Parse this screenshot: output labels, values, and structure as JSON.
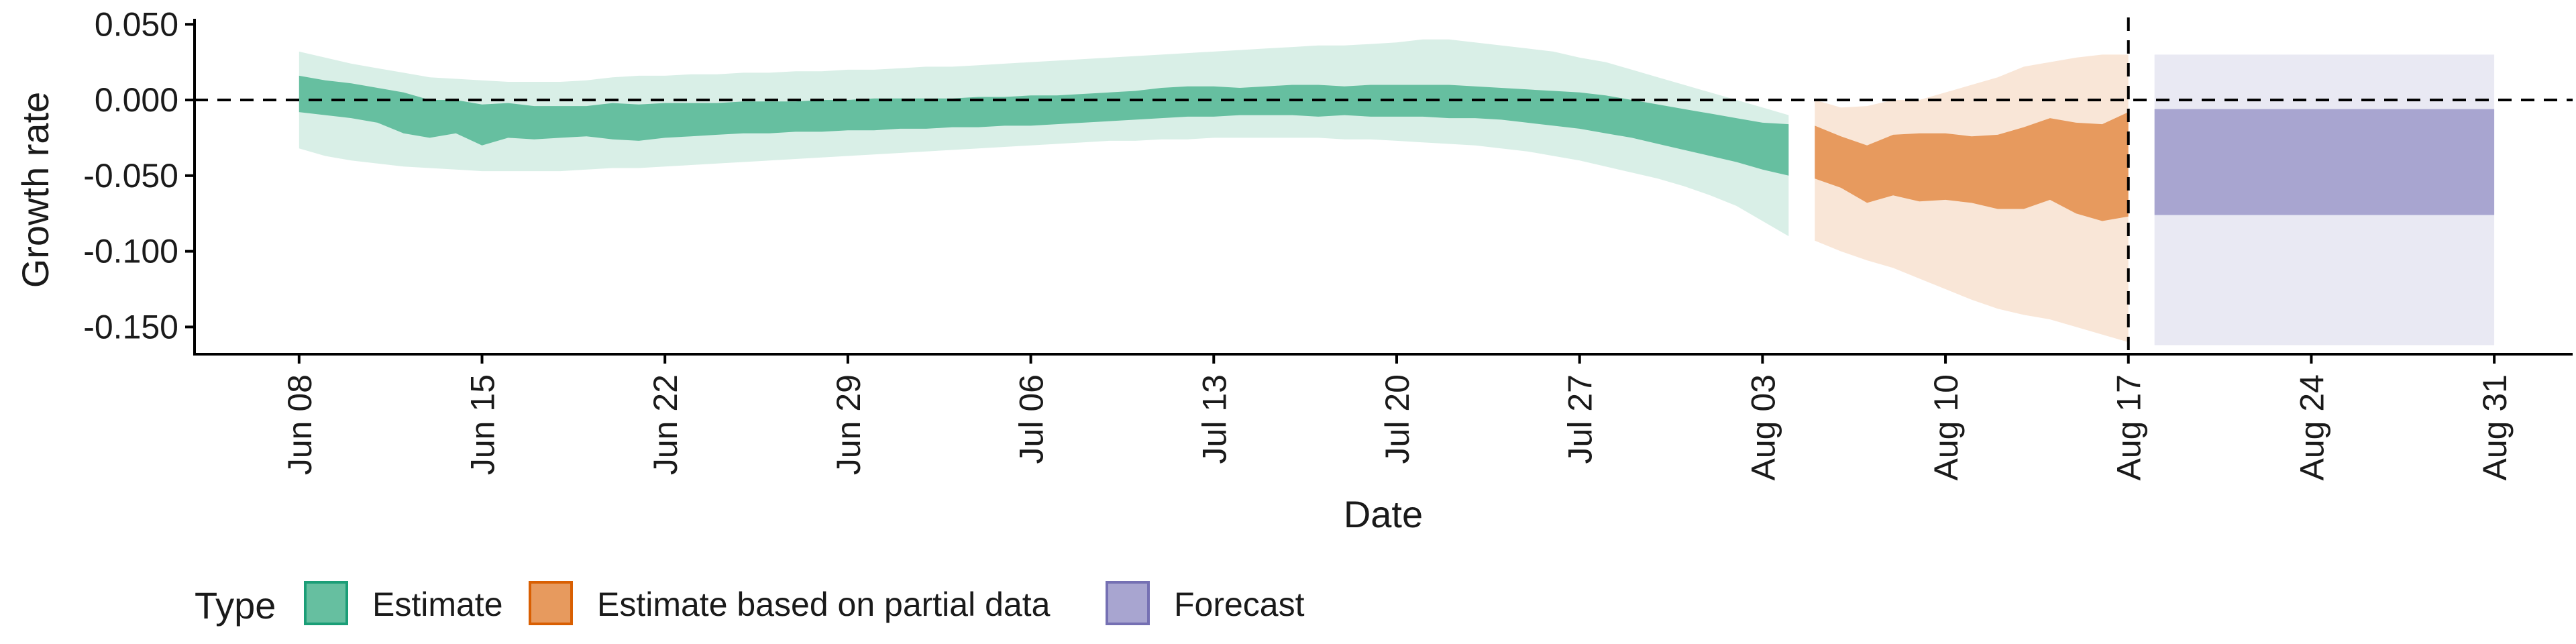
{
  "chart_data": {
    "type": "area",
    "xlabel": "Date",
    "ylabel": "Growth rate",
    "xlim": [
      "2021-06-04",
      "2021-09-03"
    ],
    "ylim": [
      -0.168,
      0.051
    ],
    "y_ticks": [
      0.05,
      0.0,
      -0.05,
      -0.1,
      -0.15
    ],
    "y_tick_labels": [
      "0.050",
      "0.000",
      "-0.050",
      "-0.100",
      "-0.150"
    ],
    "x_ticks": [
      "2021-06-08",
      "2021-06-15",
      "2021-06-22",
      "2021-06-29",
      "2021-07-06",
      "2021-07-13",
      "2021-07-20",
      "2021-07-27",
      "2021-08-03",
      "2021-08-10",
      "2021-08-17",
      "2021-08-24",
      "2021-08-31"
    ],
    "x_tick_labels": [
      "Jun 08",
      "Jun 15",
      "Jun 22",
      "Jun 29",
      "Jul 06",
      "Jul 13",
      "Jul 20",
      "Jul 27",
      "Aug 03",
      "Aug 10",
      "Aug 17",
      "Aug 24",
      "Aug 31"
    ],
    "reference_lines": {
      "horizontal_y": 0.0,
      "vertical_x": "2021-08-17",
      "style": "dashed"
    },
    "grid": false,
    "legend": {
      "title": "Type",
      "position": "bottom-left",
      "entries": [
        {
          "label": "Estimate",
          "color": "#1b9e77",
          "fill": "#66bfa0"
        },
        {
          "label": "Estimate based on partial data",
          "color": "#d95f02",
          "fill": "#e79a5e"
        },
        {
          "label": "Forecast",
          "color": "#7570b3",
          "fill": "#a8a5d0"
        }
      ]
    },
    "outer_band_opacity": 0.25,
    "series": [
      {
        "name": "Estimate",
        "color": "#1b9e77",
        "x": [
          "2021-06-08",
          "2021-06-09",
          "2021-06-10",
          "2021-06-11",
          "2021-06-12",
          "2021-06-13",
          "2021-06-14",
          "2021-06-15",
          "2021-06-16",
          "2021-06-17",
          "2021-06-18",
          "2021-06-19",
          "2021-06-20",
          "2021-06-21",
          "2021-06-22",
          "2021-06-23",
          "2021-06-24",
          "2021-06-25",
          "2021-06-26",
          "2021-06-27",
          "2021-06-28",
          "2021-06-29",
          "2021-06-30",
          "2021-07-01",
          "2021-07-02",
          "2021-07-03",
          "2021-07-04",
          "2021-07-05",
          "2021-07-06",
          "2021-07-07",
          "2021-07-08",
          "2021-07-09",
          "2021-07-10",
          "2021-07-11",
          "2021-07-12",
          "2021-07-13",
          "2021-07-14",
          "2021-07-15",
          "2021-07-16",
          "2021-07-17",
          "2021-07-18",
          "2021-07-19",
          "2021-07-20",
          "2021-07-21",
          "2021-07-22",
          "2021-07-23",
          "2021-07-24",
          "2021-07-25",
          "2021-07-26",
          "2021-07-27",
          "2021-07-28",
          "2021-07-29",
          "2021-07-30",
          "2021-07-31",
          "2021-08-01",
          "2021-08-02",
          "2021-08-03",
          "2021-08-04"
        ],
        "inner_upper": [
          0.016,
          0.013,
          0.011,
          0.008,
          0.005,
          0.0,
          0.0,
          -0.003,
          -0.002,
          -0.004,
          -0.004,
          -0.004,
          -0.002,
          -0.003,
          -0.002,
          -0.002,
          -0.002,
          -0.001,
          -0.001,
          -0.001,
          0.0,
          0.0,
          0.001,
          0.001,
          0.001,
          0.001,
          0.002,
          0.002,
          0.003,
          0.003,
          0.004,
          0.005,
          0.006,
          0.008,
          0.009,
          0.009,
          0.008,
          0.009,
          0.01,
          0.01,
          0.009,
          0.01,
          0.01,
          0.01,
          0.01,
          0.009,
          0.008,
          0.007,
          0.006,
          0.005,
          0.003,
          0.0,
          -0.003,
          -0.006,
          -0.009,
          -0.012,
          -0.015,
          -0.016
        ],
        "inner_lower": [
          -0.008,
          -0.01,
          -0.012,
          -0.015,
          -0.022,
          -0.025,
          -0.022,
          -0.03,
          -0.025,
          -0.026,
          -0.025,
          -0.024,
          -0.026,
          -0.027,
          -0.025,
          -0.024,
          -0.023,
          -0.022,
          -0.022,
          -0.021,
          -0.021,
          -0.02,
          -0.02,
          -0.019,
          -0.019,
          -0.018,
          -0.018,
          -0.017,
          -0.017,
          -0.016,
          -0.015,
          -0.014,
          -0.013,
          -0.012,
          -0.011,
          -0.011,
          -0.01,
          -0.01,
          -0.01,
          -0.011,
          -0.01,
          -0.011,
          -0.011,
          -0.011,
          -0.012,
          -0.012,
          -0.013,
          -0.015,
          -0.017,
          -0.019,
          -0.022,
          -0.025,
          -0.029,
          -0.033,
          -0.037,
          -0.041,
          -0.046,
          -0.05
        ],
        "outer_upper": [
          0.032,
          0.028,
          0.024,
          0.021,
          0.018,
          0.015,
          0.014,
          0.013,
          0.012,
          0.012,
          0.012,
          0.013,
          0.015,
          0.016,
          0.016,
          0.017,
          0.017,
          0.018,
          0.018,
          0.019,
          0.019,
          0.02,
          0.02,
          0.021,
          0.022,
          0.022,
          0.023,
          0.024,
          0.025,
          0.026,
          0.027,
          0.028,
          0.029,
          0.03,
          0.031,
          0.032,
          0.033,
          0.034,
          0.035,
          0.036,
          0.036,
          0.037,
          0.038,
          0.04,
          0.04,
          0.038,
          0.036,
          0.034,
          0.032,
          0.028,
          0.025,
          0.02,
          0.015,
          0.01,
          0.005,
          0.0,
          -0.005,
          -0.01
        ],
        "outer_lower": [
          -0.032,
          -0.037,
          -0.04,
          -0.042,
          -0.044,
          -0.045,
          -0.046,
          -0.047,
          -0.047,
          -0.047,
          -0.047,
          -0.046,
          -0.045,
          -0.045,
          -0.044,
          -0.043,
          -0.042,
          -0.041,
          -0.04,
          -0.039,
          -0.038,
          -0.037,
          -0.036,
          -0.035,
          -0.034,
          -0.033,
          -0.032,
          -0.031,
          -0.03,
          -0.029,
          -0.028,
          -0.027,
          -0.027,
          -0.026,
          -0.026,
          -0.025,
          -0.025,
          -0.025,
          -0.025,
          -0.025,
          -0.026,
          -0.026,
          -0.027,
          -0.028,
          -0.029,
          -0.03,
          -0.032,
          -0.034,
          -0.037,
          -0.04,
          -0.044,
          -0.048,
          -0.052,
          -0.057,
          -0.063,
          -0.07,
          -0.08,
          -0.09
        ]
      },
      {
        "name": "Estimate based on partial data",
        "color": "#d95f02",
        "x": [
          "2021-08-05",
          "2021-08-06",
          "2021-08-07",
          "2021-08-08",
          "2021-08-09",
          "2021-08-10",
          "2021-08-11",
          "2021-08-12",
          "2021-08-13",
          "2021-08-14",
          "2021-08-15",
          "2021-08-16",
          "2021-08-17"
        ],
        "inner_upper": [
          -0.017,
          -0.024,
          -0.03,
          -0.023,
          -0.022,
          -0.022,
          -0.024,
          -0.023,
          -0.018,
          -0.012,
          -0.015,
          -0.016,
          -0.008
        ],
        "inner_lower": [
          -0.052,
          -0.058,
          -0.068,
          -0.063,
          -0.067,
          -0.066,
          -0.068,
          -0.072,
          -0.072,
          -0.066,
          -0.075,
          -0.08,
          -0.077
        ],
        "outer_upper": [
          0.0,
          -0.005,
          -0.004,
          0.0,
          0.0,
          0.005,
          0.01,
          0.015,
          0.022,
          0.025,
          0.028,
          0.03,
          0.03
        ],
        "outer_lower": [
          -0.093,
          -0.1,
          -0.106,
          -0.111,
          -0.118,
          -0.125,
          -0.132,
          -0.138,
          -0.142,
          -0.145,
          -0.15,
          -0.155,
          -0.16
        ]
      },
      {
        "name": "Forecast",
        "color": "#7570b3",
        "x": [
          "2021-08-18",
          "2021-08-31"
        ],
        "inner_upper": [
          -0.006,
          -0.006
        ],
        "inner_lower": [
          -0.076,
          -0.076
        ],
        "outer_upper": [
          0.03,
          0.03
        ],
        "outer_lower": [
          -0.162,
          -0.162
        ]
      }
    ]
  }
}
